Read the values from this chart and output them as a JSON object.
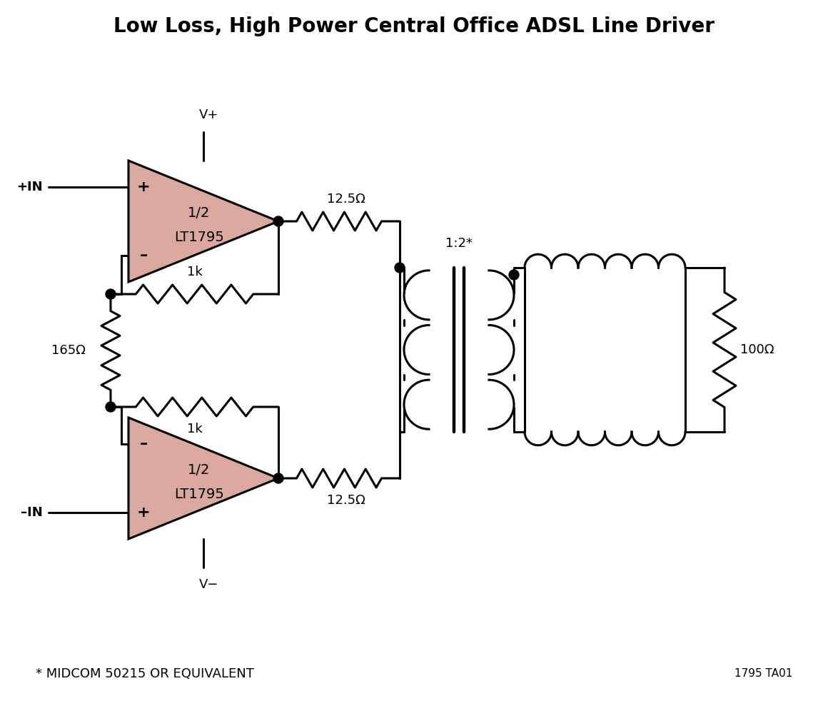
{
  "title": "Low Loss, High Power Central Office ADSL Line Driver",
  "title_fontsize": 20,
  "title_fontweight": "bold",
  "bg_color": "#ffffff",
  "line_color": "#000000",
  "amp_fill_color": "#dba8a0",
  "amp_edge_color": "#000000",
  "line_width": 2.2,
  "footnote": "* MIDCOM 50215 OR EQUIVALENT",
  "footnote2": "1795 TA01",
  "label_vplus": "V+",
  "label_vminus": "V−",
  "label_plus_in": "+IN",
  "label_minus_in": "–IN",
  "label_165": "165Ω",
  "label_1k_top": "1k",
  "label_1k_bot": "1k",
  "label_12p5_top": "12.5Ω",
  "label_12p5_bot": "12.5Ω",
  "label_ratio": "1:2*",
  "label_100": "100Ω",
  "amp1_label1": "1/2",
  "amp1_label2": "LT1795",
  "amp2_label1": "1/2",
  "amp2_label2": "LT1795"
}
